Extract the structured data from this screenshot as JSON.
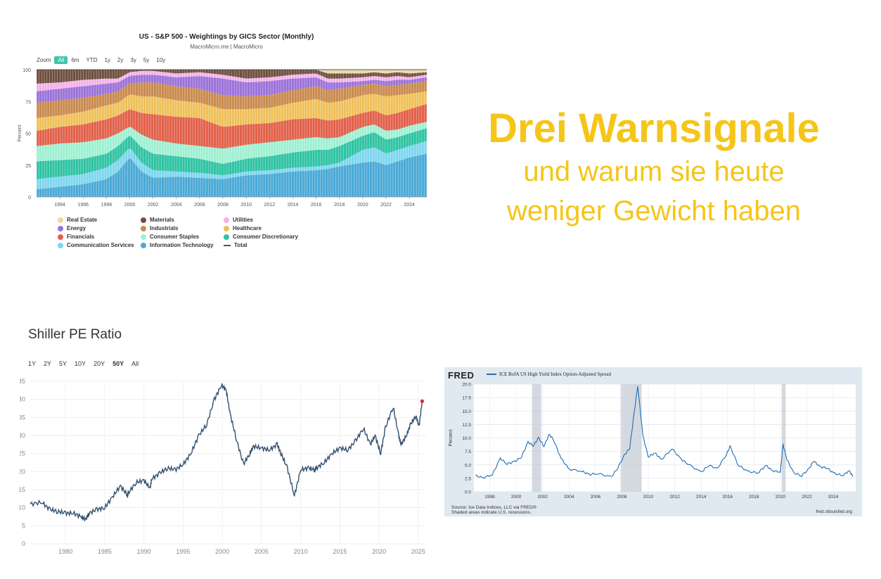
{
  "headline": {
    "title": "Drei Warnsignale",
    "subtitle_line1": "und warum sie heute",
    "subtitle_line2": "weniger Gewicht haben",
    "color": "#f5c518"
  },
  "sp500_chart": {
    "title": "US - S&P 500 - Weightings by GICS Sector (Monthly)",
    "subtitle": "MacroMicro.me | MacroMicro",
    "zoom_label": "Zoom",
    "zoom_buttons": [
      "All",
      "6m",
      "YTD",
      "1y",
      "2y",
      "3y",
      "5y",
      "10y"
    ],
    "zoom_active": "All",
    "ylabel": "Percent",
    "legend": [
      {
        "name": "Real Estate",
        "color": "#7b5a45"
      },
      {
        "name": "Materials",
        "color": "#6e4f3e"
      },
      {
        "name": "Utilities",
        "color": "#f2b3e8"
      },
      {
        "name": "Energy",
        "color": "#9b72d9"
      },
      {
        "name": "Industrials",
        "color": "#c98b4e"
      },
      {
        "name": "Healthcare",
        "color": "#efc05a"
      },
      {
        "name": "Financials",
        "color": "#e2604a"
      },
      {
        "name": "Consumer Staples",
        "color": "#9ff0d3"
      },
      {
        "name": "Consumer Discretionary",
        "color": "#2fc3a3"
      },
      {
        "name": "Communication Services",
        "color": "#7fd6ee"
      },
      {
        "name": "Information Technology",
        "color": "#4aa9d6"
      },
      {
        "name": "Total",
        "color": "#555555"
      }
    ]
  },
  "shiller_chart": {
    "title": "Shiller PE Ratio",
    "ranges": [
      "1Y",
      "2Y",
      "5Y",
      "10Y",
      "20Y",
      "50Y",
      "All"
    ],
    "active_range": "50Y",
    "line_color": "#34506f",
    "marker_color": "#d62b3a"
  },
  "fred_chart": {
    "logo": "FRED",
    "series_name": "ICE BofA US High Yield Index Option-Adjusted Spread",
    "ylabel": "Percent",
    "source_line1": "Source: Ice Data Indices, LLC via FRED®",
    "source_line2": "Shaded areas indicate U.S. recessions.",
    "url": "fred.stlouisfed.org",
    "line_color": "#1f6db5"
  },
  "chart_data": [
    {
      "type": "area",
      "title": "US - S&P 500 - Weightings by GICS Sector (Monthly)",
      "ylabel": "Percent",
      "ylim": [
        0,
        100
      ],
      "y_ticks": [
        "0",
        "25",
        "50",
        "75",
        "100"
      ],
      "x_ticks": [
        "1994",
        "1996",
        "1998",
        "2000",
        "2002",
        "2004",
        "2006",
        "2008",
        "2010",
        "2012",
        "2014",
        "2016",
        "2018",
        "2020",
        "2022",
        "2024"
      ],
      "x": [
        1992,
        1994,
        1996,
        1998,
        1999,
        2000,
        2001,
        2002,
        2004,
        2006,
        2008,
        2010,
        2012,
        2014,
        2016,
        2017,
        2018,
        2020,
        2021,
        2022,
        2023,
        2024,
        2025.5
      ],
      "stacked": true,
      "series": [
        {
          "name": "Information Technology",
          "values": [
            6,
            8,
            10,
            14,
            20,
            32,
            20,
            15,
            16,
            15,
            14,
            17,
            18,
            20,
            21,
            22,
            24,
            27,
            28,
            25,
            28,
            31,
            34
          ]
        },
        {
          "name": "Communication Services",
          "values": [
            8,
            8,
            8,
            9,
            9,
            8,
            7,
            6,
            4,
            4,
            3,
            3,
            3,
            3,
            3,
            3,
            3,
            10,
            11,
            9,
            9,
            9,
            10
          ]
        },
        {
          "name": "Consumer Discretionary",
          "values": [
            14,
            13,
            12,
            11,
            11,
            10,
            12,
            13,
            12,
            11,
            9,
            10,
            11,
            12,
            13,
            12,
            13,
            11,
            12,
            11,
            10,
            10,
            10
          ]
        },
        {
          "name": "Consumer Staples",
          "values": [
            12,
            13,
            13,
            12,
            10,
            7,
            10,
            11,
            10,
            10,
            12,
            11,
            11,
            10,
            10,
            9,
            7,
            7,
            6,
            7,
            6,
            6,
            5
          ]
        },
        {
          "name": "Financials",
          "values": [
            12,
            13,
            14,
            15,
            14,
            14,
            17,
            20,
            21,
            22,
            17,
            16,
            15,
            16,
            15,
            14,
            14,
            11,
            11,
            12,
            13,
            13,
            14
          ]
        },
        {
          "name": "Healthcare",
          "values": [
            10,
            9,
            10,
            11,
            10,
            12,
            13,
            14,
            13,
            12,
            14,
            12,
            12,
            13,
            15,
            14,
            14,
            14,
            13,
            15,
            14,
            12,
            10
          ]
        },
        {
          "name": "Industrials",
          "values": [
            12,
            12,
            11,
            9,
            9,
            9,
            11,
            11,
            11,
            11,
            11,
            10,
            10,
            10,
            10,
            10,
            10,
            8,
            8,
            8,
            8,
            8,
            8
          ]
        },
        {
          "name": "Energy",
          "values": [
            9,
            9,
            9,
            8,
            7,
            6,
            6,
            6,
            7,
            10,
            13,
            11,
            11,
            9,
            7,
            6,
            5,
            3,
            3,
            4,
            4,
            3,
            3
          ]
        },
        {
          "name": "Utilities",
          "values": [
            6,
            5,
            5,
            4,
            3,
            3,
            3,
            3,
            3,
            3,
            3,
            3,
            3,
            3,
            3,
            3,
            3,
            3,
            3,
            3,
            3,
            2,
            2
          ]
        },
        {
          "name": "Materials",
          "values": [
            11,
            10,
            8,
            7,
            7,
            2,
            1,
            1,
            3,
            2,
            4,
            7,
            6,
            4,
            3,
            4,
            4,
            3,
            3,
            3,
            3,
            3,
            2
          ]
        },
        {
          "name": "Real Estate",
          "values": [
            0,
            0,
            0,
            0,
            0,
            0,
            0,
            0,
            0,
            0,
            0,
            0,
            0,
            0,
            0,
            3,
            3,
            3,
            2,
            3,
            2,
            3,
            2
          ]
        }
      ]
    },
    {
      "type": "line",
      "title": "Shiller PE Ratio",
      "ylim": [
        0,
        45
      ],
      "y_ticks": [
        "0",
        "5",
        "10",
        "15",
        "20",
        "25",
        "30",
        "35",
        "40",
        "45"
      ],
      "x_ticks": [
        "1980",
        "1985",
        "1990",
        "1995",
        "2000",
        "2005",
        "2010",
        "2015",
        "2020",
        "2025"
      ],
      "series": [
        {
          "x": [
            1975.5,
            1977,
            1978,
            1979,
            1980,
            1981,
            1982,
            1982.6,
            1983,
            1984,
            1985,
            1986,
            1987,
            1987.9,
            1988,
            1989,
            1990,
            1990.8,
            1991,
            1992,
            1993,
            1994,
            1995,
            1996,
            1997,
            1998,
            1999,
            1999.9,
            2000.5,
            2001,
            2001.8,
            2002.7,
            2003.5,
            2004,
            2005,
            2006,
            2007,
            2007.5,
            2008.3,
            2009.2,
            2010,
            2011,
            2011.8,
            2012,
            2013,
            2014,
            2015,
            2016,
            2017,
            2018,
            2018.9,
            2019.5,
            2020.2,
            2020.8,
            2021.8,
            2022.5,
            2022.8,
            2023.5,
            2024,
            2024.7,
            2025.1,
            2025.5
          ],
          "y": [
            11,
            11.5,
            9.5,
            9,
            8.5,
            8.5,
            7.5,
            6.7,
            8.5,
            9.5,
            10,
            13,
            16,
            13.5,
            14,
            17,
            17.5,
            15.5,
            18,
            19.5,
            21,
            20.5,
            22,
            25,
            30,
            33,
            40,
            44,
            42.5,
            36,
            29,
            22,
            25,
            27,
            26.5,
            26,
            27.5,
            25,
            21,
            13.3,
            20.5,
            21,
            20.5,
            21,
            22.5,
            25,
            26.5,
            26,
            28.5,
            32,
            27.5,
            30,
            25,
            32,
            38,
            30,
            27.5,
            30,
            33,
            35.5,
            32.5,
            39.5
          ]
        }
      ]
    },
    {
      "type": "line",
      "title": "ICE BofA US High Yield Index Option-Adjusted Spread",
      "ylabel": "Percent",
      "ylim": [
        0,
        20
      ],
      "y_ticks": [
        "0.0",
        "2.5",
        "5.0",
        "7.5",
        "10.0",
        "12.5",
        "15.0",
        "17.5",
        "20.0"
      ],
      "x_ticks": [
        "1998",
        "2000",
        "2002",
        "2004",
        "2006",
        "2008",
        "2010",
        "2012",
        "2014",
        "2016",
        "2018",
        "2020",
        "2022",
        "2024"
      ],
      "recessions": [
        [
          2001.2,
          2001.9
        ],
        [
          2007.9,
          2009.5
        ],
        [
          2020.1,
          2020.4
        ]
      ],
      "series": [
        {
          "name": "ICE BofA US High Yield Index Option-Adjusted Spread",
          "x": [
            1996.9,
            1997.5,
            1998.2,
            1998.8,
            1999.3,
            1999.9,
            2000.4,
            2000.9,
            2001.3,
            2001.7,
            2002.1,
            2002.5,
            2002.8,
            2003.4,
            2004,
            2005,
            2005.5,
            2006.2,
            2007.2,
            2007.7,
            2008.2,
            2008.6,
            2008.9,
            2009.2,
            2009.6,
            2010,
            2010.5,
            2011,
            2011.8,
            2012.5,
            2013,
            2014,
            2014.6,
            2015.2,
            2015.9,
            2016.2,
            2016.8,
            2017.5,
            2018.3,
            2018.9,
            2019.4,
            2020,
            2020.2,
            2020.5,
            2021,
            2021.6,
            2022.2,
            2022.5,
            2023,
            2023.5,
            2024,
            2024.7,
            2025.2,
            2025.5
          ],
          "y": [
            3,
            2.6,
            3.2,
            6.2,
            5.2,
            5.6,
            6.5,
            9.2,
            8.6,
            10,
            8.5,
            10.6,
            9.8,
            6.2,
            4.2,
            3.8,
            3.2,
            3.4,
            2.7,
            4.5,
            6.8,
            8.2,
            14,
            19.7,
            10.3,
            6.5,
            7.2,
            6,
            8,
            6,
            5.2,
            3.6,
            5,
            4.2,
            6.9,
            8.4,
            5,
            3.8,
            3.5,
            4.9,
            3.9,
            3.7,
            8.8,
            6,
            3.5,
            3,
            4.3,
            5.8,
            4.6,
            4.5,
            3.5,
            3,
            3.9,
            2.8
          ]
        }
      ]
    }
  ]
}
